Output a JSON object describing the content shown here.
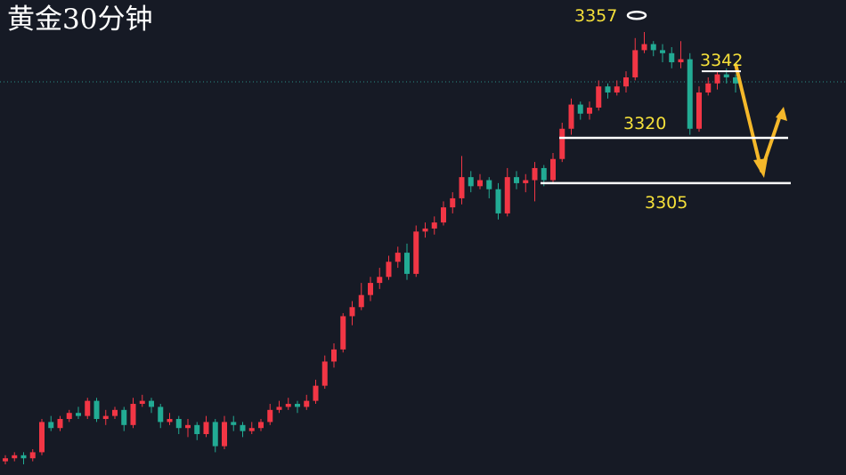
{
  "chart_data": {
    "type": "candlestick",
    "title": "黄金30分钟",
    "up_color": "#f23645",
    "down_color": "#22ab94",
    "open": [
      3213,
      3214,
      3215,
      3214,
      3216,
      3226,
      3224,
      3227,
      3229,
      3228,
      3233,
      3227,
      3228,
      3230,
      3225,
      3232,
      3233,
      3231,
      3226,
      3227,
      3224,
      3225,
      3222,
      3226,
      3218,
      3226,
      3225,
      3223,
      3224,
      3226,
      3230,
      3231,
      3232,
      3231,
      3233,
      3238,
      3246,
      3250,
      3261,
      3264,
      3268,
      3272,
      3274,
      3279,
      3282,
      3275,
      3289,
      3290,
      3292,
      3297,
      3300,
      3307,
      3304,
      3306,
      3303,
      3295,
      3307,
      3305,
      3306,
      3310,
      3306,
      3313,
      3323,
      3331,
      3328,
      3330,
      3337,
      3335,
      3337,
      3340,
      3349,
      3351,
      3349,
      3348,
      3345,
      3346,
      3323,
      3335,
      3338,
      3341,
      3340
    ],
    "high": [
      3215,
      3216,
      3216,
      3217,
      3227,
      3228,
      3228,
      3230,
      3231,
      3234,
      3234,
      3230,
      3231,
      3231,
      3234,
      3235,
      3234,
      3232,
      3229,
      3228,
      3227,
      3226,
      3228,
      3227,
      3228,
      3228,
      3226,
      3226,
      3227,
      3232,
      3233,
      3234,
      3233,
      3235,
      3240,
      3248,
      3252,
      3262,
      3266,
      3272,
      3274,
      3277,
      3281,
      3284,
      3285,
      3291,
      3292,
      3294,
      3299,
      3302,
      3314,
      3309,
      3308,
      3307,
      3305,
      3310,
      3309,
      3308,
      3312,
      3311,
      3315,
      3325,
      3333,
      3332,
      3332,
      3339,
      3338,
      3339,
      3342,
      3353,
      3355,
      3352,
      3351,
      3350,
      3352,
      3348,
      3337,
      3340,
      3342,
      3343,
      3341
    ],
    "low": [
      3212,
      3213,
      3212,
      3213,
      3215,
      3223,
      3223,
      3226,
      3227,
      3227,
      3226,
      3225,
      3227,
      3223,
      3224,
      3231,
      3229,
      3224,
      3225,
      3222,
      3221,
      3220,
      3221,
      3216,
      3217,
      3223,
      3221,
      3222,
      3223,
      3225,
      3229,
      3230,
      3229,
      3230,
      3232,
      3237,
      3244,
      3249,
      3258,
      3263,
      3266,
      3270,
      3273,
      3277,
      3273,
      3274,
      3287,
      3288,
      3291,
      3295,
      3298,
      3302,
      3303,
      3300,
      3293,
      3294,
      3303,
      3302,
      3299,
      3304,
      3305,
      3312,
      3321,
      3326,
      3326,
      3329,
      3333,
      3334,
      3335,
      3339,
      3348,
      3347,
      3345,
      3343,
      3343,
      3321,
      3322,
      3334,
      3336,
      3338,
      3335
    ],
    "close": [
      3214,
      3215,
      3214,
      3216,
      3226,
      3224,
      3227,
      3229,
      3228,
      3233,
      3227,
      3228,
      3230,
      3225,
      3232,
      3233,
      3231,
      3226,
      3227,
      3224,
      3225,
      3222,
      3226,
      3218,
      3226,
      3225,
      3223,
      3224,
      3226,
      3230,
      3231,
      3232,
      3231,
      3233,
      3238,
      3246,
      3250,
      3261,
      3264,
      3268,
      3272,
      3274,
      3279,
      3282,
      3275,
      3289,
      3290,
      3292,
      3297,
      3300,
      3307,
      3304,
      3306,
      3303,
      3295,
      3307,
      3305,
      3306,
      3310,
      3306,
      3313,
      3323,
      3331,
      3328,
      3330,
      3337,
      3335,
      3337,
      3340,
      3349,
      3351,
      3349,
      3348,
      3345,
      3346,
      3323,
      3335,
      3338,
      3341,
      3340,
      3338
    ],
    "high_mark": 3357,
    "resistance": 3342,
    "levels": [
      3320,
      3305
    ]
  }
}
